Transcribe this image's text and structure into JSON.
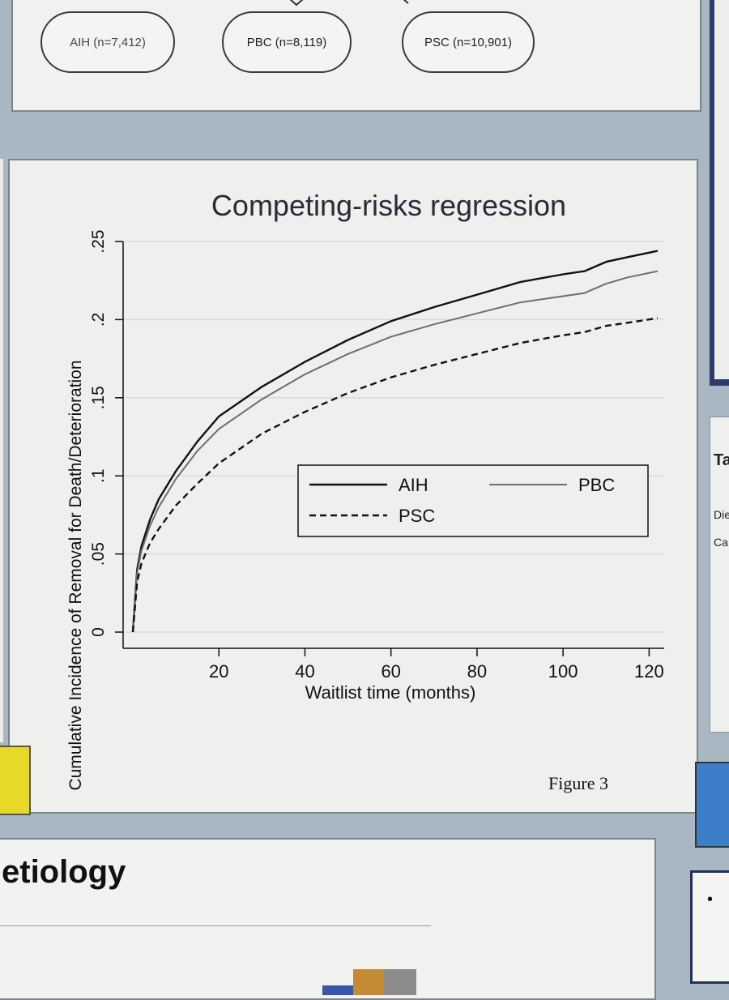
{
  "flowchart": {
    "boxes": [
      {
        "label": "AIH (n=7,412)"
      },
      {
        "label": "PBC (n=8,119)"
      },
      {
        "label": "PSC (n=10,901)"
      }
    ]
  },
  "figure_caption": "Figure 3",
  "section_heading": "etiology",
  "side_table": {
    "title": "Ta",
    "rows": [
      "Die",
      "Ca"
    ]
  },
  "side_bullet": "•",
  "colors": {
    "AIH": "#111111",
    "PBC": "#6e6e6e",
    "PSC": "#111111",
    "poster_bg": "#a9b7c2"
  },
  "chart_data": {
    "type": "line",
    "title": "Competing-risks regression",
    "xlabel": "Waitlist time (months)",
    "ylabel": "Cumulative Incidence of Removal for Death/Deterioration",
    "xlim": [
      0,
      122
    ],
    "ylim": [
      0,
      0.25
    ],
    "xticks": [
      {
        "value": 20,
        "label": "20"
      },
      {
        "value": 40,
        "label": "40"
      },
      {
        "value": 60,
        "label": "60"
      },
      {
        "value": 80,
        "label": "80"
      },
      {
        "value": 100,
        "label": "100"
      },
      {
        "value": 120,
        "label": "120"
      }
    ],
    "yticks": [
      {
        "value": 0,
        "label": "0"
      },
      {
        "value": 0.05,
        "label": ".05"
      },
      {
        "value": 0.1,
        "label": ".1"
      },
      {
        "value": 0.15,
        "label": ".15"
      },
      {
        "value": 0.2,
        "label": ".2"
      },
      {
        "value": 0.25,
        "label": ".25"
      }
    ],
    "grid": true,
    "legend_position": "center-right",
    "series": [
      {
        "name": "AIH",
        "style": "solid",
        "x": [
          0,
          1,
          2,
          4,
          6,
          10,
          15,
          20,
          30,
          40,
          50,
          60,
          70,
          80,
          90,
          100,
          105,
          110,
          115,
          122
        ],
        "y": [
          0.0,
          0.04,
          0.055,
          0.072,
          0.085,
          0.103,
          0.122,
          0.138,
          0.157,
          0.173,
          0.187,
          0.199,
          0.208,
          0.216,
          0.224,
          0.229,
          0.231,
          0.237,
          0.24,
          0.244
        ]
      },
      {
        "name": "PBC",
        "style": "solid",
        "x": [
          0,
          1,
          2,
          4,
          6,
          10,
          15,
          20,
          30,
          40,
          50,
          60,
          70,
          80,
          90,
          100,
          105,
          110,
          115,
          122
        ],
        "y": [
          0.0,
          0.038,
          0.052,
          0.068,
          0.08,
          0.098,
          0.116,
          0.13,
          0.149,
          0.165,
          0.178,
          0.189,
          0.197,
          0.204,
          0.211,
          0.215,
          0.217,
          0.223,
          0.227,
          0.231
        ]
      },
      {
        "name": "PSC",
        "style": "dashed",
        "x": [
          0,
          1,
          2,
          4,
          6,
          10,
          15,
          20,
          30,
          40,
          50,
          60,
          70,
          80,
          90,
          100,
          105,
          110,
          115,
          122
        ],
        "y": [
          0.0,
          0.032,
          0.044,
          0.057,
          0.066,
          0.081,
          0.095,
          0.108,
          0.127,
          0.141,
          0.153,
          0.163,
          0.171,
          0.178,
          0.185,
          0.19,
          0.192,
          0.196,
          0.198,
          0.201
        ]
      }
    ]
  }
}
